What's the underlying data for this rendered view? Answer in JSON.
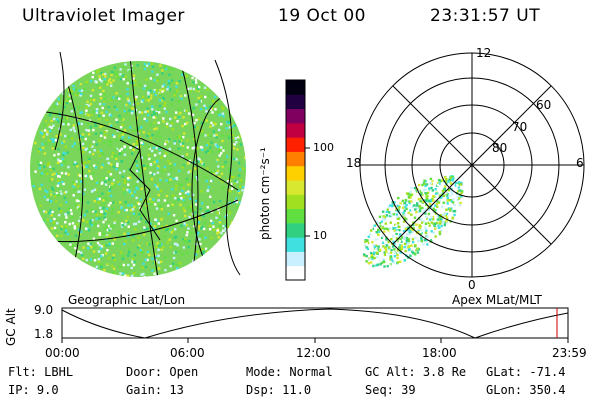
{
  "header": {
    "title": "Ultraviolet Imager",
    "date": "19 Oct 00",
    "time": "23:31:57 UT"
  },
  "geo_panel": {
    "caption": "Geographic Lat/Lon"
  },
  "polar_panel": {
    "caption": "Apex MLat/MLT",
    "mlt_labels": {
      "top": "12",
      "left": "18",
      "right": "6",
      "bottom": "0"
    },
    "lat_labels": [
      "60",
      "70",
      "80"
    ]
  },
  "colorbar": {
    "label": "photon cm⁻²s⁻¹",
    "ticks": [
      "100",
      "10"
    ]
  },
  "altitude_plot": {
    "ylabel": "GC Alt",
    "ylim_labels": [
      "9.0",
      "1.8"
    ],
    "x_ticks": [
      "00:00",
      "06:00",
      "12:00",
      "18:00",
      "23:59"
    ],
    "current_marker_color": "#cc0000"
  },
  "status": {
    "flt": {
      "label": "Flt:",
      "value": "LBHL"
    },
    "ip": {
      "label": "IP:",
      "value": "9.0"
    },
    "door": {
      "label": "Door:",
      "value": "Open"
    },
    "gain": {
      "label": "Gain:",
      "value": "13"
    },
    "mode": {
      "label": "Mode:",
      "value": "Normal"
    },
    "dsp": {
      "label": "Dsp:",
      "value": "11.0"
    },
    "gcalt": {
      "label": "GC Alt:",
      "value": "3.8 Re"
    },
    "seq": {
      "label": "Seq:",
      "value": "39"
    },
    "glat": {
      "label": "GLat:",
      "value": "-71.4"
    },
    "glon": {
      "label": "GLon:",
      "value": "350.4"
    }
  },
  "colors": {
    "palette": [
      "#ffffff",
      "#c8f0ff",
      "#40e0e0",
      "#30d080",
      "#60e040",
      "#a0e020",
      "#d8e830",
      "#ffd000",
      "#ff8000",
      "#ff2000",
      "#c00040",
      "#800060",
      "#200040",
      "#000010"
    ]
  }
}
